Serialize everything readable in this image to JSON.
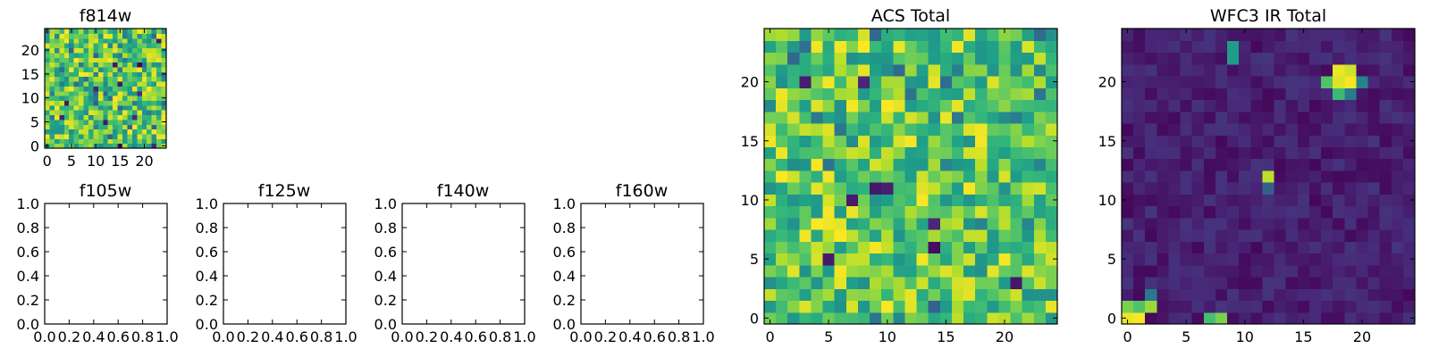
{
  "chart_data": [
    {
      "type": "heatmap",
      "title": "f814w",
      "colormap": "viridis",
      "xlim": [
        -0.5,
        24.5
      ],
      "ylim": [
        -0.5,
        24.5
      ],
      "xticks": [
        0,
        5,
        10,
        15,
        20
      ],
      "yticks": [
        0,
        5,
        10,
        15,
        20
      ],
      "grid_size": [
        25,
        25
      ],
      "value_range": [
        0,
        1
      ],
      "note": "random noise image, mostly green-yellow"
    },
    {
      "type": "heatmap",
      "title": "f105w",
      "xlim": [
        0.0,
        1.0
      ],
      "ylim": [
        0.0,
        1.0
      ],
      "xticks": [
        "0.0",
        "0.2",
        "0.4",
        "0.6",
        "0.8",
        "1.0"
      ],
      "yticks": [
        "0.0",
        "0.2",
        "0.4",
        "0.6",
        "0.8",
        "1.0"
      ],
      "empty": true
    },
    {
      "type": "heatmap",
      "title": "f125w",
      "xlim": [
        0.0,
        1.0
      ],
      "ylim": [
        0.0,
        1.0
      ],
      "xticks": [
        "0.0",
        "0.2",
        "0.4",
        "0.6",
        "0.8",
        "1.0"
      ],
      "yticks": [
        "0.0",
        "0.2",
        "0.4",
        "0.6",
        "0.8",
        "1.0"
      ],
      "empty": true
    },
    {
      "type": "heatmap",
      "title": "f140w",
      "xlim": [
        0.0,
        1.0
      ],
      "ylim": [
        0.0,
        1.0
      ],
      "xticks": [
        "0.0",
        "0.2",
        "0.4",
        "0.6",
        "0.8",
        "1.0"
      ],
      "yticks": [
        "0.0",
        "0.2",
        "0.4",
        "0.6",
        "0.8",
        "1.0"
      ],
      "empty": true
    },
    {
      "type": "heatmap",
      "title": "f160w",
      "xlim": [
        0.0,
        1.0
      ],
      "ylim": [
        0.0,
        1.0
      ],
      "xticks": [
        "0.0",
        "0.2",
        "0.4",
        "0.6",
        "0.8",
        "1.0"
      ],
      "yticks": [
        "0.0",
        "0.2",
        "0.4",
        "0.6",
        "0.8",
        "1.0"
      ],
      "empty": true
    },
    {
      "type": "heatmap",
      "title": "ACS Total",
      "colormap": "viridis",
      "xlim": [
        -0.5,
        24.5
      ],
      "ylim": [
        -0.5,
        24.5
      ],
      "xticks": [
        0,
        5,
        10,
        15,
        20
      ],
      "yticks": [
        0,
        5,
        10,
        15,
        20
      ],
      "grid_size": [
        25,
        25
      ],
      "value_range": [
        0,
        1
      ],
      "low_pixels": [
        [
          3,
          20
        ],
        [
          9,
          11
        ],
        [
          10,
          11
        ],
        [
          7,
          10
        ],
        [
          14,
          8
        ],
        [
          5,
          5
        ],
        [
          14,
          6
        ],
        [
          21,
          3
        ],
        [
          8,
          20
        ]
      ],
      "note": "random noise image, mostly green-yellow"
    },
    {
      "type": "heatmap",
      "title": "WFC3 IR Total",
      "colormap": "viridis",
      "xlim": [
        -0.5,
        24.5
      ],
      "ylim": [
        -0.5,
        24.5
      ],
      "xticks": [
        0,
        5,
        10,
        15,
        20
      ],
      "yticks": [
        0,
        5,
        10,
        15,
        20
      ],
      "grid_size": [
        25,
        25
      ],
      "value_range": [
        0,
        1
      ],
      "bright_pixels": [
        {
          "x": 18,
          "y": 21,
          "v": 0.97
        },
        {
          "x": 19,
          "y": 21,
          "v": 0.93
        },
        {
          "x": 18,
          "y": 20,
          "v": 0.95
        },
        {
          "x": 19,
          "y": 20,
          "v": 0.99
        },
        {
          "x": 17,
          "y": 20,
          "v": 0.72
        },
        {
          "x": 20,
          "y": 20,
          "v": 0.45
        },
        {
          "x": 18,
          "y": 19,
          "v": 0.68
        },
        {
          "x": 19,
          "y": 19,
          "v": 0.42
        },
        {
          "x": 9,
          "y": 23,
          "v": 0.55
        },
        {
          "x": 9,
          "y": 22,
          "v": 0.55
        },
        {
          "x": 12,
          "y": 12,
          "v": 0.9
        },
        {
          "x": 12,
          "y": 11,
          "v": 0.3
        },
        {
          "x": 0,
          "y": 0,
          "v": 0.97
        },
        {
          "x": 1,
          "y": 0,
          "v": 0.99
        },
        {
          "x": 0,
          "y": 1,
          "v": 0.8
        },
        {
          "x": 1,
          "y": 1,
          "v": 0.72
        },
        {
          "x": 2,
          "y": 1,
          "v": 0.85
        },
        {
          "x": 2,
          "y": 2,
          "v": 0.4
        },
        {
          "x": 7,
          "y": 0,
          "v": 0.7
        },
        {
          "x": 8,
          "y": 0,
          "v": 0.8
        }
      ],
      "note": "mostly dark purple background with a few bright sources"
    }
  ]
}
